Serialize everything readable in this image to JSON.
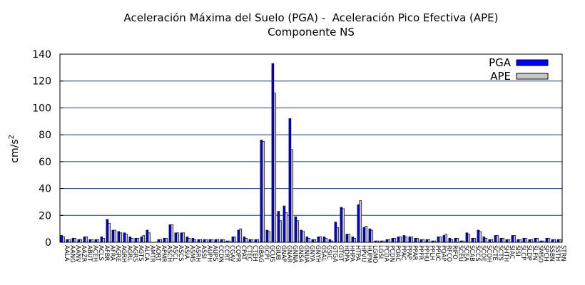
{
  "chart_data": {
    "type": "bar",
    "title": "Aceleración Máxima del Suelo (PGA) -  Aceleración Pico Efectiva (APE)",
    "subtitle": "Componente NS",
    "ylabel": "cm/s",
    "ylabel_sup": "2",
    "xlabel": "",
    "ylim": [
      0,
      140
    ],
    "yticks": [
      0,
      20,
      40,
      60,
      80,
      100,
      120,
      140
    ],
    "grid": true,
    "legend_position": "top-right",
    "categories": [
      "AALA",
      "AANG",
      "AANV",
      "AAZR",
      "ABUT",
      "ACEH",
      "ACLS",
      "AFBR",
      "AFRA",
      "AGRE",
      "AGRH",
      "AGRL",
      "AGRS",
      "AGTS",
      "ALCA",
      "AMTR",
      "AORT",
      "APMR",
      "ASCH",
      "ASCL",
      "ASCS",
      "ASIA",
      "ASMS",
      "ASRH",
      "ASSI",
      "AUPH",
      "AUPS",
      "CCDN",
      "CCRT",
      "CGAV",
      "COPR",
      "CPAT",
      "CTEC",
      "CTEH",
      "GBAG",
      "GCPI",
      "GCUS",
      "GIUB",
      "GNAP",
      "GNAR",
      "GNNA",
      "GNSA",
      "GNUA",
      "GNYA",
      "GNYH",
      "GSAL",
      "GSIC",
      "GTGA",
      "GTGT",
      "HDPA",
      "HHPA",
      "HTPA",
      "HPVU",
      "HUPM",
      "LGMO",
      "LGSI",
      "PCDA",
      "PCDN",
      "POAC",
      "PPAC",
      "PPAP",
      "PPAR",
      "PPFR",
      "PPHU",
      "PPLH",
      "PPUC",
      "PQAP",
      "RFCO",
      "RIFO",
      "SCEU",
      "SCEA",
      "SCAB",
      "SCCS",
      "SCOE",
      "SCOH",
      "SCTE",
      "SCTS",
      "SHTH",
      "SIAC",
      "SISI",
      "SLCP",
      "SLDP",
      "SLFN",
      "SMSO",
      "SPCH",
      "SSBN",
      "SSTH",
      "STRN"
    ],
    "series": [
      {
        "name": "PGA",
        "color": "#0000ff",
        "values": [
          5,
          2,
          3,
          2,
          4,
          2,
          2,
          4,
          17,
          9,
          8,
          7,
          4,
          3,
          4,
          9,
          0,
          2,
          3,
          13,
          7,
          7,
          4,
          3,
          2,
          2,
          2,
          2,
          2,
          1,
          4,
          9,
          4,
          2,
          2,
          76,
          9,
          133,
          23,
          27,
          92,
          19,
          9,
          4,
          2,
          4,
          4,
          2,
          15,
          26,
          6,
          4,
          28,
          11,
          10,
          1,
          1,
          2,
          3,
          4,
          5,
          4,
          3,
          2,
          2,
          1,
          4,
          5,
          3,
          3,
          1,
          7,
          3,
          9,
          4,
          2,
          5,
          3,
          2,
          5,
          2,
          3,
          2,
          3,
          1,
          3,
          2,
          2
        ]
      },
      {
        "name": "APE",
        "color": "#c8c8c8",
        "values": [
          4,
          2,
          3,
          2,
          4,
          2,
          2,
          3,
          14,
          9,
          7,
          6,
          3,
          3,
          5,
          7,
          0,
          2,
          3,
          13,
          7,
          7,
          3,
          2,
          2,
          2,
          2,
          2,
          2,
          1,
          4,
          10,
          3,
          2,
          2,
          75,
          8,
          111,
          16,
          22,
          69,
          16,
          8,
          3,
          2,
          4,
          3,
          1,
          11,
          25,
          6,
          3,
          31,
          12,
          9,
          1,
          1,
          2,
          3,
          4,
          4,
          4,
          3,
          2,
          2,
          1,
          4,
          6,
          2,
          3,
          1,
          6,
          3,
          8,
          3,
          2,
          5,
          3,
          2,
          5,
          2,
          3,
          2,
          3,
          1,
          3,
          2,
          2
        ]
      }
    ]
  }
}
